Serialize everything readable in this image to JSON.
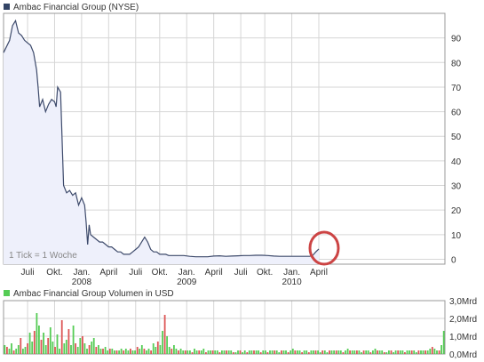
{
  "colors": {
    "price_line": "#3d4a6b",
    "price_fill": "#eef0fb",
    "grid": "#d6d6d6",
    "legend_price": "#334466",
    "vol_up": "#55cc55",
    "vol_down": "#dd5555",
    "annotation": "#cc4444",
    "text": "#333333"
  },
  "chart_data": [
    {
      "type": "area",
      "title": "Ambac Financial Group (NYSE)",
      "note": "1 Tick = 1 Woche",
      "grid": true,
      "ylim": [
        -2,
        100
      ],
      "yticks": [
        0,
        10,
        20,
        30,
        40,
        50,
        60,
        70,
        80,
        90
      ],
      "xlim": [
        0,
        147
      ],
      "xticks": [
        {
          "x": 8,
          "label": "Juli"
        },
        {
          "x": 17,
          "label": "Okt."
        },
        {
          "x": 26,
          "label": "Jan."
        },
        {
          "x": 35,
          "label": "April"
        },
        {
          "x": 44,
          "label": "Juli"
        },
        {
          "x": 52,
          "label": "Okt."
        },
        {
          "x": 61,
          "label": "Jan."
        },
        {
          "x": 70,
          "label": "April"
        },
        {
          "x": 79,
          "label": "Juli"
        },
        {
          "x": 87,
          "label": "Okt."
        },
        {
          "x": 96,
          "label": "Jan."
        },
        {
          "x": 105,
          "label": "April"
        }
      ],
      "year_labels": [
        {
          "x": 26,
          "label": "2008"
        },
        {
          "x": 61,
          "label": "2009"
        },
        {
          "x": 96,
          "label": "2010"
        }
      ],
      "series": [
        {
          "values": [
            [
              0,
              84
            ],
            [
              2,
              89
            ],
            [
              3,
              95
            ],
            [
              4,
              97
            ],
            [
              5,
              92
            ],
            [
              6,
              91
            ],
            [
              7,
              89
            ],
            [
              8,
              88
            ],
            [
              9,
              87
            ],
            [
              10,
              84
            ],
            [
              11,
              77
            ],
            [
              11.5,
              70
            ],
            [
              12,
              62
            ],
            [
              13,
              65
            ],
            [
              14,
              60
            ],
            [
              15,
              63
            ],
            [
              16,
              65
            ],
            [
              17,
              64
            ],
            [
              17.5,
              62
            ],
            [
              18,
              70
            ],
            [
              19,
              68
            ],
            [
              20,
              30
            ],
            [
              21,
              27
            ],
            [
              22,
              28
            ],
            [
              23,
              26
            ],
            [
              24,
              27
            ],
            [
              25,
              22
            ],
            [
              26,
              25
            ],
            [
              27,
              22
            ],
            [
              27.5,
              15
            ],
            [
              28,
              6
            ],
            [
              28.5,
              14
            ],
            [
              29,
              10
            ],
            [
              30,
              9
            ],
            [
              31,
              8
            ],
            [
              32,
              7
            ],
            [
              33,
              7
            ],
            [
              34,
              6
            ],
            [
              35,
              5
            ],
            [
              36,
              5
            ],
            [
              37,
              4
            ],
            [
              38,
              3
            ],
            [
              39,
              3
            ],
            [
              40,
              2
            ],
            [
              41,
              2
            ],
            [
              42,
              2
            ],
            [
              43,
              3
            ],
            [
              44,
              4
            ],
            [
              45,
              5
            ],
            [
              46,
              7
            ],
            [
              47,
              9
            ],
            [
              48,
              7
            ],
            [
              49,
              4
            ],
            [
              50,
              3
            ],
            [
              51,
              3
            ],
            [
              52,
              2
            ],
            [
              53,
              2
            ],
            [
              54,
              2
            ],
            [
              55,
              1.5
            ],
            [
              57,
              1.5
            ],
            [
              59,
              1.5
            ],
            [
              60,
              1.5
            ],
            [
              62,
              1.2
            ],
            [
              64,
              1
            ],
            [
              66,
              1
            ],
            [
              68,
              1
            ],
            [
              70,
              1.3
            ],
            [
              72,
              1.4
            ],
            [
              74,
              1.2
            ],
            [
              76,
              1.3
            ],
            [
              78,
              1.4
            ],
            [
              80,
              1.5
            ],
            [
              82,
              1.5
            ],
            [
              84,
              1.6
            ],
            [
              86,
              1.6
            ],
            [
              88,
              1.5
            ],
            [
              90,
              1.3
            ],
            [
              92,
              1.2
            ],
            [
              94,
              1.2
            ],
            [
              96,
              1.2
            ],
            [
              98,
              1.2
            ],
            [
              100,
              1.2
            ],
            [
              102,
              1.2
            ],
            [
              103,
              1.6
            ],
            [
              104,
              3
            ],
            [
              105,
              4.2
            ]
          ]
        }
      ],
      "annotations": [
        {
          "type": "circle",
          "x": 105,
          "y": 4.5
        }
      ]
    },
    {
      "type": "bar",
      "title": "Ambac Financial Group Volumen in USD",
      "grid": true,
      "ylim": [
        0,
        3
      ],
      "yticks": [
        {
          "v": 0,
          "label": "0,0Mrd"
        },
        {
          "v": 1,
          "label": "1,0Mrd"
        },
        {
          "v": 2,
          "label": "2,0Mrd"
        },
        {
          "v": 3,
          "label": "3,0Mrd"
        }
      ],
      "x_start": 0.5,
      "x_step": 0.5,
      "series": [
        {
          "name": "up",
          "values": [
            0.5,
            0.4,
            0.3,
            0.6,
            0.2,
            0.3,
            0.5,
            0.9,
            0.3,
            0.4,
            0.6,
            1.2,
            0.7,
            1.3,
            2.3,
            1.6,
            0.8,
            1.2,
            0.5,
            0.9,
            1.5,
            0.7,
            0.4,
            1.1,
            0.3,
            1.9,
            0.6,
            0.8,
            1.4,
            0.5,
            1.6,
            0.6,
            0.4,
            0.9,
            1.0,
            0.6,
            0.3,
            0.5,
            0.7,
            0.9,
            0.4,
            0.5,
            0.3,
            0.3,
            0.4,
            0.2,
            0.3,
            0.3,
            0.2,
            0.2,
            0.2,
            0.3,
            0.2,
            0.3,
            0.2,
            0.3,
            0.2,
            0.2,
            0.4,
            0.3,
            0.5,
            0.3,
            0.2,
            0.3,
            0.2,
            0.6,
            0.4,
            0.7,
            0.5,
            1.3,
            2.2,
            1.0,
            0.4,
            0.3,
            0.5,
            0.3,
            0.2,
            0.3,
            0.2,
            0.2,
            0.2,
            0.2,
            0.1,
            0.3,
            0.2,
            0.2,
            0.2,
            0.3,
            0.1,
            0.2,
            0.2,
            0.2,
            0.2,
            0.2,
            0.1,
            0.2,
            0.2,
            0.2,
            0.2,
            0.2,
            0.1,
            0.1,
            0.2,
            0.2,
            0.1,
            0.2,
            0.1,
            0.2,
            0.2,
            0.2,
            0.2,
            0.2,
            0.1,
            0.2,
            0.2,
            0.1,
            0.2,
            0.2,
            0.2,
            0.2,
            0.1,
            0.2,
            0.2,
            0.2,
            0.1,
            0.2,
            0.3,
            0.2,
            0.2,
            0.2,
            0.1,
            0.2,
            0.2,
            0.1,
            0.2,
            0.2,
            0.2,
            0.2,
            0.1,
            0.2,
            0.2,
            0.1,
            0.2,
            0.2,
            0.2,
            0.2,
            0.2,
            0.2,
            0.1,
            0.2,
            0.3,
            0.2,
            0.2,
            0.2,
            0.2,
            0.2,
            0.1,
            0.2,
            0.2,
            0.2,
            0.1,
            0.2,
            0.3,
            0.2,
            0.2,
            0.2,
            0.1,
            0.1,
            0.2,
            0.2,
            0.1,
            0.2,
            0.2,
            0.2,
            0.2,
            0.1,
            0.2,
            0.2,
            0.2,
            0.2,
            0.1,
            0.2,
            0.2,
            0.2,
            0.2,
            0.2,
            0.3,
            0.4,
            0.3,
            0.2,
            0.2,
            0.5,
            1.3
          ]
        }
      ],
      "down_pattern": "alternating"
    }
  ]
}
